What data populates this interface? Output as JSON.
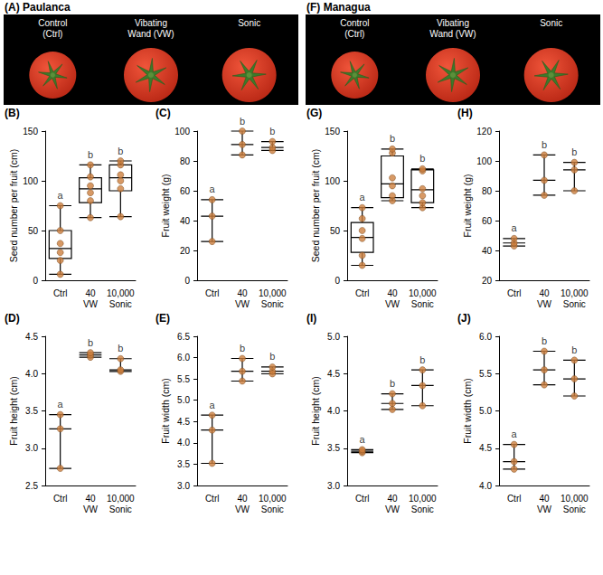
{
  "photos": [
    {
      "panel": "(A)",
      "title": "Paulanca",
      "labels": [
        [
          "Control",
          "(Ctrl)"
        ],
        [
          "Vibating",
          "Wand (VW)"
        ],
        [
          "Sonic"
        ]
      ]
    },
    {
      "panel": "(F)",
      "title": "Managua",
      "labels": [
        [
          "Control",
          "(Ctrl)"
        ],
        [
          "Vibating",
          "Wand (VW)"
        ],
        [
          "Sonic"
        ]
      ]
    }
  ],
  "chart_data": [
    {
      "type": "boxplot",
      "panel": "(B)",
      "ylabel": "Seed number per fruit (cm)",
      "categories": [
        "Ctrl",
        "VW",
        "Sonic"
      ],
      "frequency": [
        null,
        "40",
        "10,000"
      ],
      "box": [
        [
          6,
          22,
          32,
          50,
          75
        ],
        [
          63,
          78,
          92,
          103,
          116
        ],
        [
          64,
          90,
          103,
          116,
          120
        ]
      ],
      "points": [
        [
          6,
          20,
          28,
          37,
          50,
          75
        ],
        [
          63,
          80,
          88,
          95,
          104,
          116
        ],
        [
          64,
          92,
          100,
          106,
          116,
          120
        ]
      ],
      "letters": [
        "a",
        "b",
        "b"
      ],
      "color": "#cd7f3f",
      "ylim": [
        0,
        150
      ],
      "yticks": [
        0,
        50,
        100,
        150
      ]
    },
    {
      "type": "boxplot",
      "panel": "(C)",
      "ylabel": "Fruit weight (g)",
      "categories": [
        "Ctrl",
        "VW",
        "Sonic"
      ],
      "frequency": [
        null,
        "40",
        "10,000"
      ],
      "box": [
        [
          26,
          43,
          43,
          43,
          54
        ],
        [
          84,
          91,
          91,
          91,
          100
        ],
        [
          87,
          89,
          89,
          89,
          93
        ]
      ],
      "points": [
        [
          26,
          43,
          54
        ],
        [
          84,
          91,
          100
        ],
        [
          87,
          89,
          93
        ]
      ],
      "letters": [
        "a",
        "b",
        "b"
      ],
      "color": "#cd7f3f",
      "ylim": [
        0,
        100
      ],
      "yticks": [
        0,
        20,
        40,
        60,
        80,
        100
      ]
    },
    {
      "type": "boxplot",
      "panel": "(D)",
      "ylabel": "Fruit height (cm)",
      "categories": [
        "Ctrl",
        "VW",
        "Sonic"
      ],
      "frequency": [
        null,
        "40",
        "10,000"
      ],
      "box": [
        [
          2.73,
          3.26,
          3.26,
          3.26,
          3.45
        ],
        [
          4.22,
          4.25,
          4.25,
          4.25,
          4.28
        ],
        [
          4.03,
          4.05,
          4.05,
          4.05,
          4.2
        ]
      ],
      "points": [
        [
          2.73,
          3.26,
          3.45
        ],
        [
          4.22,
          4.25,
          4.28
        ],
        [
          4.03,
          4.05,
          4.2
        ]
      ],
      "letters": [
        "a",
        "b",
        "b"
      ],
      "color": "#cd7f3f",
      "ylim": [
        2.5,
        4.5
      ],
      "yticks": [
        2.5,
        {
          "value": 3,
          "label": "3.0"
        },
        3.5,
        {
          "value": 4,
          "label": "4.0"
        },
        4.5
      ]
    },
    {
      "type": "boxplot",
      "panel": "(E)",
      "ylabel": "Fruit width (cm)",
      "categories": [
        "Ctrl",
        "VW",
        "Sonic"
      ],
      "frequency": [
        null,
        "40",
        "10,000"
      ],
      "box": [
        [
          3.52,
          4.3,
          4.3,
          4.3,
          4.65
        ],
        [
          5.45,
          5.68,
          5.68,
          5.68,
          5.98
        ],
        [
          5.62,
          5.68,
          5.68,
          5.68,
          5.78
        ]
      ],
      "points": [
        [
          3.52,
          4.3,
          4.65
        ],
        [
          5.45,
          5.68,
          5.98
        ],
        [
          5.62,
          5.68,
          5.78
        ]
      ],
      "letters": [
        "a",
        "b",
        "b"
      ],
      "color": "#cd7f3f",
      "ylim": [
        3,
        6.5
      ],
      "yticks": [
        {
          "value": 3,
          "label": "3.0"
        },
        3.5,
        {
          "value": 4,
          "label": "4.0"
        },
        4.5,
        {
          "value": 5,
          "label": "5.0"
        },
        5.5,
        {
          "value": 6,
          "label": "6.0"
        },
        6.5
      ]
    },
    {
      "type": "boxplot",
      "panel": "(G)",
      "ylabel": "Seed number per fruit (cm)",
      "categories": [
        "Ctrl",
        "VW",
        "Sonic"
      ],
      "frequency": [
        null,
        "40",
        "10,000"
      ],
      "box": [
        [
          15,
          28,
          43,
          58,
          73
        ],
        [
          80,
          83,
          97,
          125,
          132
        ],
        [
          73,
          78,
          91,
          111,
          112
        ]
      ],
      "points": [
        [
          15,
          25,
          42,
          50,
          62,
          73
        ],
        [
          80,
          85,
          95,
          103,
          128,
          132
        ],
        [
          73,
          78,
          85,
          92,
          110,
          112
        ]
      ],
      "letters": [
        "a",
        "b",
        "b"
      ],
      "color": "#cd7f3f",
      "ylim": [
        0,
        150
      ],
      "yticks": [
        0,
        50,
        100,
        150
      ]
    },
    {
      "type": "boxplot",
      "panel": "(H)",
      "ylabel": "Fruit weight (g)",
      "categories": [
        "Ctrl",
        "VW",
        "Sonic"
      ],
      "frequency": [
        null,
        "40",
        "10,000"
      ],
      "box": [
        [
          43,
          45,
          45,
          45,
          48
        ],
        [
          77,
          87,
          87,
          87,
          104
        ],
        [
          80,
          94,
          94,
          94,
          99
        ]
      ],
      "points": [
        [
          43,
          45,
          48
        ],
        [
          77,
          87,
          104
        ],
        [
          80,
          94,
          99
        ]
      ],
      "letters": [
        "a",
        "b",
        "b"
      ],
      "color": "#cd7f3f",
      "ylim": [
        20,
        120
      ],
      "yticks": [
        20,
        40,
        60,
        80,
        100,
        120
      ]
    },
    {
      "type": "boxplot",
      "panel": "(I)",
      "ylabel": "Fruit height (cm)",
      "categories": [
        "Ctrl",
        "VW",
        "Sonic"
      ],
      "frequency": [
        null,
        "40",
        "10,000"
      ],
      "box": [
        [
          3.44,
          3.46,
          3.46,
          3.46,
          3.48
        ],
        [
          4.02,
          4.1,
          4.1,
          4.1,
          4.23
        ],
        [
          4.07,
          4.34,
          4.34,
          4.34,
          4.55
        ]
      ],
      "points": [
        [
          3.44,
          3.46,
          3.48
        ],
        [
          4.02,
          4.1,
          4.23
        ],
        [
          4.07,
          4.34,
          4.55
        ]
      ],
      "letters": [
        "a",
        "b",
        "b"
      ],
      "color": "#cd7f3f",
      "ylim": [
        3,
        5
      ],
      "yticks": [
        {
          "value": 3,
          "label": "3.0"
        },
        3.5,
        {
          "value": 4,
          "label": "4.0"
        },
        4.5,
        {
          "value": 5,
          "label": "5.0"
        }
      ]
    },
    {
      "type": "boxplot",
      "panel": "(J)",
      "ylabel": "Fruit width (cm)",
      "categories": [
        "Ctrl",
        "VW",
        "Sonic"
      ],
      "frequency": [
        null,
        "40",
        "10,000"
      ],
      "box": [
        [
          4.22,
          4.32,
          4.32,
          4.32,
          4.55
        ],
        [
          5.35,
          5.55,
          5.55,
          5.55,
          5.8
        ],
        [
          5.2,
          5.43,
          5.43,
          5.43,
          5.68
        ]
      ],
      "points": [
        [
          4.22,
          4.32,
          4.55
        ],
        [
          5.35,
          5.55,
          5.8
        ],
        [
          5.2,
          5.43,
          5.68
        ]
      ],
      "letters": [
        "a",
        "b",
        "b"
      ],
      "color": "#cd7f3f",
      "ylim": [
        4,
        6
      ],
      "yticks": [
        {
          "value": 4,
          "label": "4.0"
        },
        4.5,
        {
          "value": 5,
          "label": "5.0"
        },
        5.5,
        {
          "value": 6,
          "label": "6.0"
        }
      ]
    }
  ]
}
